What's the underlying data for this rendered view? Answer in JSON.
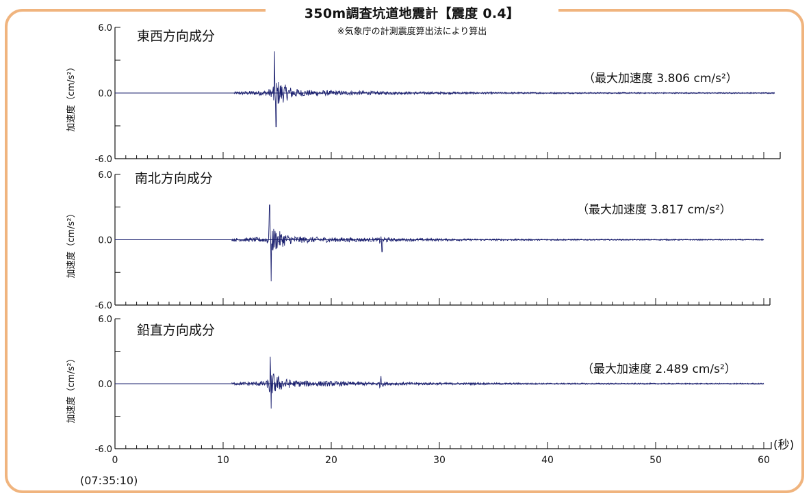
{
  "header": {
    "title": "350m調査坑道地震計【震度 0.4】",
    "subtitle": "※気象庁の計測震度算出法により算出"
  },
  "colors": {
    "frame": "#f0b47e",
    "trace": "#1a1f6e",
    "axis": "#111111"
  },
  "chart_data": [
    {
      "type": "line",
      "title": "東西方向成分",
      "ylabel": "加速度（cm/s²）",
      "peak_label": "（最大加速度 3.806 cm/s²）",
      "ylim": [
        -6.0,
        6.0
      ],
      "yticks": [
        "6.0",
        "0.0",
        "-6.0"
      ],
      "xlim": [
        0,
        60
      ],
      "record_end_s": 61,
      "signal_start_s": 11,
      "events": [
        {
          "t": 14.75,
          "amp": 3.806,
          "sign": 1
        },
        {
          "t": 14.9,
          "amp": 3.1,
          "sign": -1
        }
      ],
      "bursts": [
        {
          "t0": 14.6,
          "t1": 16.5,
          "amp": 1.6,
          "decay": 3.5
        }
      ]
    },
    {
      "type": "line",
      "title": "南北方向成分",
      "ylabel": "加速度（cm/s²）",
      "peak_label": "（最大加速度 3.817 cm/s²）",
      "ylim": [
        -6.0,
        6.0
      ],
      "yticks": [
        "6.0",
        "0.0",
        "-6.0"
      ],
      "xlim": [
        0,
        60
      ],
      "record_end_s": 60,
      "signal_start_s": 10.8,
      "events": [
        {
          "t": 14.45,
          "amp": 3.817,
          "sign": -1
        },
        {
          "t": 14.3,
          "amp": 3.2,
          "sign": 1
        },
        {
          "t": 24.7,
          "amp": 1.1,
          "sign": -1
        }
      ],
      "bursts": [
        {
          "t0": 14.2,
          "t1": 17.0,
          "amp": 1.5,
          "decay": 3.5
        },
        {
          "t0": 24.4,
          "t1": 25.5,
          "amp": 0.5,
          "decay": 2.0
        }
      ]
    },
    {
      "type": "line",
      "title": "鉛直方向成分",
      "ylabel": "加速度（cm/s²）",
      "peak_label": "（最大加速度 2.489 cm/s²）",
      "ylim": [
        -6.0,
        6.0
      ],
      "yticks": [
        "6.0",
        "0.0",
        "-6.0"
      ],
      "xlim": [
        0,
        60
      ],
      "record_end_s": 60,
      "signal_start_s": 10.8,
      "events": [
        {
          "t": 14.35,
          "amp": 2.489,
          "sign": 1
        },
        {
          "t": 14.45,
          "amp": 2.3,
          "sign": -1
        },
        {
          "t": 24.6,
          "amp": 0.7,
          "sign": 1
        }
      ],
      "bursts": [
        {
          "t0": 14.2,
          "t1": 17.0,
          "amp": 1.3,
          "decay": 3.5
        },
        {
          "t0": 24.4,
          "t1": 25.5,
          "amp": 0.4,
          "decay": 2.0
        }
      ]
    }
  ],
  "x_axis": {
    "ticks": [
      "0",
      "10",
      "20",
      "30",
      "40",
      "50",
      "60"
    ],
    "unit_label": "(秒)",
    "start_time": "(07:35:10)"
  }
}
